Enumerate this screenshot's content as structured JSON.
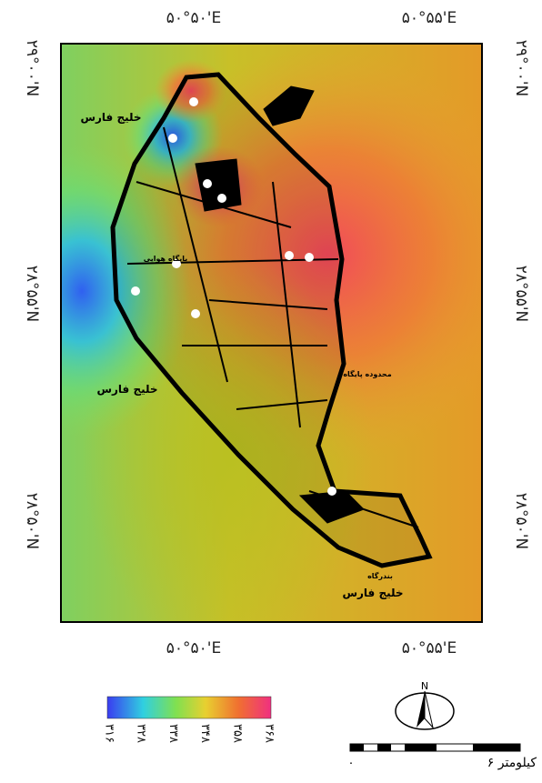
{
  "coordinates": {
    "top": [
      "۵۰°۵۰'E",
      "۵۰°۵۵'E"
    ],
    "bottom": [
      "۵۰°۵۰'E",
      "۵۰°۵۵'E"
    ],
    "left": [
      "۲۹°۰۰'N",
      "۲۸°۵۵'N",
      "۲۸°۵۰'N"
    ],
    "right": [
      "۲۹°۰۰'N",
      "۲۸°۵۵'N",
      "۲۸°۵۰'N"
    ]
  },
  "places": [
    "خلیج فارس",
    "خلیج فارس",
    "خلیج فارس",
    "محدوده پایگاه",
    "پایگاه هوایی",
    "بندرگاه"
  ],
  "legend": {
    "labels": [
      "۳۱۶",
      "۳۲۸",
      "۳۳۸",
      "۳۴۸",
      "۳۵۸",
      "۳۶۸"
    ]
  },
  "north": "N",
  "scale": {
    "start": "۰",
    "end": "۶ کیلومتر"
  }
}
